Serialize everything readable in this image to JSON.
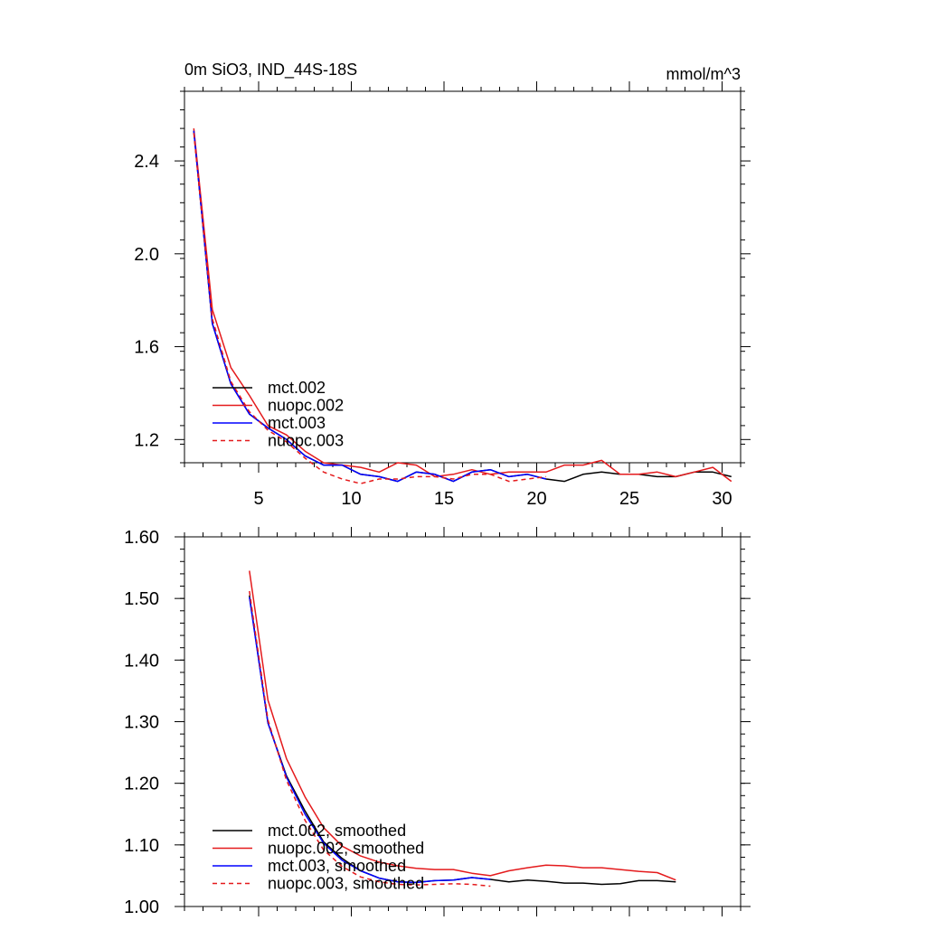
{
  "chart_data": [
    {
      "type": "line",
      "title": "0m SiO3, IND_44S-18S",
      "units": "mmol/m^3",
      "xlim": [
        1,
        31
      ],
      "ylim": [
        1.1,
        2.7
      ],
      "xticks": [
        5,
        10,
        15,
        20,
        25,
        30
      ],
      "yticks": [
        1.2,
        1.6,
        2.0,
        2.4
      ],
      "ytick_labels": [
        "1.2",
        "1.6",
        "2.0",
        "2.4"
      ],
      "legend_position": "bottom-left",
      "series": [
        {
          "name": "mct.002",
          "color": "#000000",
          "dash": "solid",
          "x": [
            1.5,
            2.5,
            3.5,
            4.5,
            5.5,
            6.5,
            7.5,
            8.5,
            9.5,
            10.5,
            11.5,
            12.5,
            13.5,
            14.5,
            15.5,
            16.5,
            17.5,
            18.5,
            19.5,
            20.5,
            21.5,
            22.5,
            23.5,
            24.5,
            25.5,
            26.5,
            27.5,
            28.5,
            29.5,
            30.5
          ],
          "y": [
            2.53,
            1.7,
            1.44,
            1.31,
            1.25,
            1.2,
            1.13,
            1.09,
            1.09,
            1.05,
            1.04,
            1.02,
            1.06,
            1.05,
            1.02,
            1.06,
            1.07,
            1.04,
            1.05,
            1.03,
            1.02,
            1.05,
            1.06,
            1.05,
            1.05,
            1.04,
            1.04,
            1.06,
            1.06,
            1.04
          ]
        },
        {
          "name": "nuopc.002",
          "color": "#e41a1c",
          "dash": "solid",
          "x": [
            1.5,
            2.5,
            3.5,
            4.5,
            5.5,
            6.5,
            7.5,
            8.5,
            9.5,
            10.5,
            11.5,
            12.5,
            13.5,
            14.5,
            15.5,
            16.5,
            17.5,
            18.5,
            19.5,
            20.5,
            21.5,
            22.5,
            23.5,
            24.5,
            25.5,
            26.5,
            27.5,
            28.5,
            29.5,
            30.5
          ],
          "y": [
            2.54,
            1.76,
            1.51,
            1.39,
            1.26,
            1.22,
            1.15,
            1.1,
            1.09,
            1.08,
            1.06,
            1.1,
            1.09,
            1.04,
            1.05,
            1.07,
            1.05,
            1.06,
            1.06,
            1.06,
            1.09,
            1.09,
            1.11,
            1.05,
            1.05,
            1.06,
            1.04,
            1.06,
            1.08,
            1.02
          ]
        },
        {
          "name": "mct.003",
          "color": "#0000ff",
          "dash": "solid",
          "x": [
            1.5,
            2.5,
            3.5,
            4.5,
            5.5,
            6.5,
            7.5,
            8.5,
            9.5,
            10.5,
            11.5,
            12.5,
            13.5,
            14.5,
            15.5,
            16.5,
            17.5,
            18.5,
            19.5,
            20.5
          ],
          "y": [
            2.53,
            1.7,
            1.44,
            1.31,
            1.25,
            1.2,
            1.13,
            1.09,
            1.09,
            1.05,
            1.04,
            1.02,
            1.06,
            1.05,
            1.02,
            1.06,
            1.07,
            1.04,
            1.05,
            1.03
          ]
        },
        {
          "name": "nuopc.003",
          "color": "#e41a1c",
          "dash": "dashed",
          "x": [
            1.5,
            2.5,
            3.5,
            4.5,
            5.5,
            6.5,
            7.5,
            8.5,
            9.5,
            10.5,
            11.5,
            12.5,
            13.5,
            14.5,
            15.5,
            16.5,
            17.5,
            18.5,
            19.5,
            20.5
          ],
          "y": [
            2.52,
            1.72,
            1.45,
            1.32,
            1.24,
            1.19,
            1.12,
            1.06,
            1.03,
            1.01,
            1.03,
            1.03,
            1.04,
            1.04,
            1.03,
            1.05,
            1.05,
            1.02,
            1.03,
            1.04
          ]
        }
      ]
    },
    {
      "type": "line",
      "title": "",
      "xlim": [
        1,
        31
      ],
      "ylim": [
        1.0,
        1.6
      ],
      "xticks": [
        5,
        10,
        15,
        20,
        25,
        30
      ],
      "yticks": [
        1.0,
        1.1,
        1.2,
        1.3,
        1.4,
        1.5,
        1.6
      ],
      "ytick_labels": [
        "1.00",
        "1.10",
        "1.20",
        "1.30",
        "1.40",
        "1.50",
        "1.60"
      ],
      "legend_position": "bottom-left",
      "series": [
        {
          "name": "mct.002, smoothed",
          "color": "#000000",
          "dash": "solid",
          "x": [
            4.5,
            5.5,
            6.5,
            7.5,
            8.5,
            9.5,
            10.5,
            11.5,
            12.5,
            13.5,
            14.5,
            15.5,
            16.5,
            17.5,
            18.5,
            19.5,
            20.5,
            21.5,
            22.5,
            23.5,
            24.5,
            25.5,
            26.5,
            27.5
          ],
          "y": [
            1.505,
            1.298,
            1.212,
            1.155,
            1.105,
            1.078,
            1.058,
            1.046,
            1.04,
            1.039,
            1.042,
            1.043,
            1.047,
            1.044,
            1.04,
            1.043,
            1.041,
            1.038,
            1.038,
            1.036,
            1.037,
            1.042,
            1.042,
            1.04
          ]
        },
        {
          "name": "nuopc.002, smoothed",
          "color": "#e41a1c",
          "dash": "solid",
          "x": [
            4.5,
            5.5,
            6.5,
            7.5,
            8.5,
            9.5,
            10.5,
            11.5,
            12.5,
            13.5,
            14.5,
            15.5,
            16.5,
            17.5,
            18.5,
            19.5,
            20.5,
            21.5,
            22.5,
            23.5,
            24.5,
            25.5,
            26.5,
            27.5
          ],
          "y": [
            1.545,
            1.335,
            1.24,
            1.178,
            1.128,
            1.098,
            1.082,
            1.072,
            1.066,
            1.062,
            1.06,
            1.06,
            1.054,
            1.05,
            1.058,
            1.063,
            1.067,
            1.066,
            1.063,
            1.063,
            1.06,
            1.057,
            1.055,
            1.043
          ]
        },
        {
          "name": "mct.003, smoothed",
          "color": "#0000ff",
          "dash": "solid",
          "x": [
            4.5,
            5.5,
            6.5,
            7.5,
            8.5,
            9.5,
            10.5,
            11.5,
            12.5,
            13.5,
            14.5,
            15.5,
            16.5,
            17.5
          ],
          "y": [
            1.502,
            1.298,
            1.21,
            1.15,
            1.103,
            1.075,
            1.058,
            1.046,
            1.04,
            1.039,
            1.042,
            1.043,
            1.047,
            1.044
          ]
        },
        {
          "name": "nuopc.003, smoothed",
          "color": "#e41a1c",
          "dash": "dashed",
          "x": [
            4.5,
            5.5,
            6.5,
            7.5,
            8.5,
            9.5,
            10.5,
            11.5,
            12.5,
            13.5,
            14.5,
            15.5,
            16.5,
            17.5
          ],
          "y": [
            1.512,
            1.303,
            1.205,
            1.14,
            1.092,
            1.065,
            1.048,
            1.04,
            1.036,
            1.035,
            1.036,
            1.037,
            1.036,
            1.033
          ]
        }
      ]
    }
  ]
}
